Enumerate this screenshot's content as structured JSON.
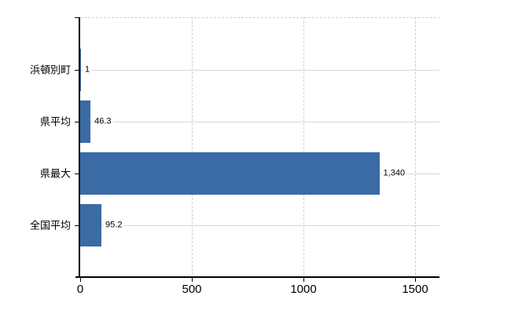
{
  "chart_data": {
    "type": "bar",
    "orientation": "horizontal",
    "categories": [
      "浜頓別町",
      "県平均",
      "県最大",
      "全国平均"
    ],
    "values": [
      1,
      46.3,
      1340,
      95.2
    ],
    "value_labels": [
      "1",
      "46.3",
      "1,340",
      "95.2"
    ],
    "x_ticks": [
      0,
      500,
      1000,
      1500
    ],
    "x_tick_labels": [
      "0",
      "500",
      "1000",
      "1500"
    ],
    "xlim": [
      0,
      1500
    ],
    "grid": true,
    "legend": false,
    "colors": {
      "bar": "#3a6ba5",
      "axis": "#000000",
      "gridline_solid": "#d5dbd5",
      "gridline_dashed": "#ccd3cc",
      "text": "#000000",
      "background": "#ffffff"
    }
  }
}
